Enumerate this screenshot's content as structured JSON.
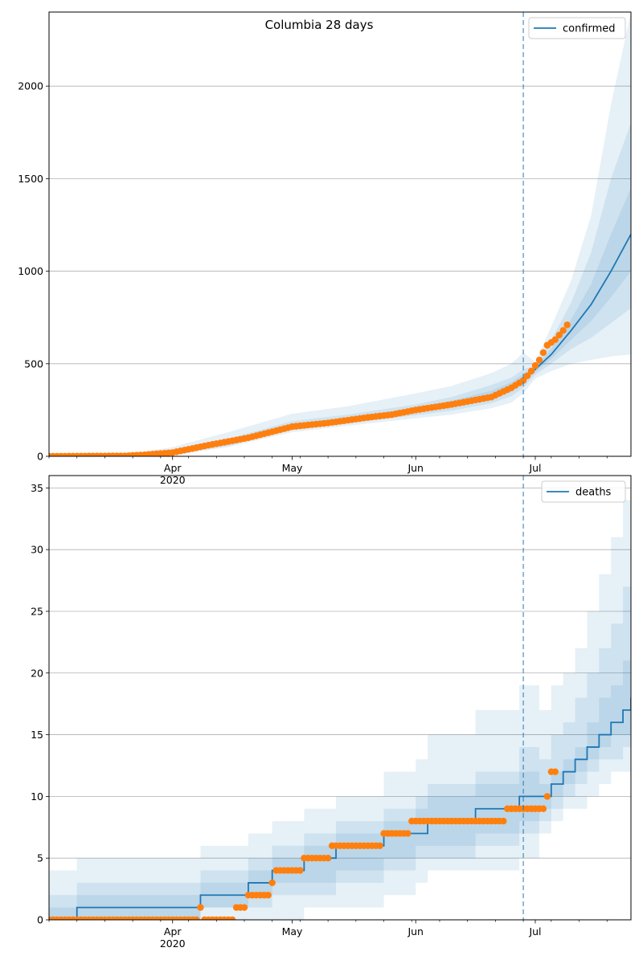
{
  "figure": {
    "title": "Columbia 28 days"
  },
  "colors": {
    "model": "#1f77b4",
    "observed": "#ff7f0e",
    "band": "#1f77b4",
    "grid": "#b0b0b0",
    "forecast_line": "#1f77b4"
  },
  "x_axis": {
    "start_date": "2020-03-01",
    "end_date": "2020-07-25",
    "major_ticks": [
      {
        "date": "2020-04-01",
        "label": "Apr",
        "sublabel": "2020"
      },
      {
        "date": "2020-05-01",
        "label": "May",
        "sublabel": ""
      },
      {
        "date": "2020-06-01",
        "label": "Jun",
        "sublabel": ""
      },
      {
        "date": "2020-07-01",
        "label": "Jul",
        "sublabel": ""
      }
    ],
    "forecast_start": "2020-06-28"
  },
  "chart_data": [
    {
      "type": "line",
      "legend": "confirmed",
      "legend_position": "upper right",
      "grid": "y",
      "ylim": [
        0,
        2400
      ],
      "yticks": [
        0,
        500,
        1000,
        1500,
        2000
      ],
      "model": {
        "x": [
          "2020-03-01",
          "2020-03-15",
          "2020-03-25",
          "2020-04-01",
          "2020-04-15",
          "2020-05-01",
          "2020-05-15",
          "2020-06-01",
          "2020-06-10",
          "2020-06-20",
          "2020-06-25",
          "2020-06-28",
          "2020-07-01",
          "2020-07-05",
          "2020-07-10",
          "2020-07-15",
          "2020-07-20",
          "2020-07-25"
        ],
        "y": [
          0,
          2,
          8,
          20,
          70,
          160,
          195,
          245,
          280,
          330,
          375,
          420,
          470,
          550,
          680,
          820,
          1000,
          1200
        ]
      },
      "bands": [
        {
          "low": [
            0,
            0,
            0,
            5,
            50,
            130,
            165,
            205,
            225,
            260,
            290,
            340,
            420,
            460,
            500,
            520,
            540,
            550
          ],
          "high": [
            0,
            8,
            25,
            50,
            130,
            230,
            270,
            340,
            380,
            450,
            500,
            560,
            510,
            700,
            950,
            1300,
            1900,
            2400
          ]
        },
        {
          "low": [
            0,
            0,
            2,
            10,
            57,
            142,
            177,
            222,
            247,
            287,
            325,
            370,
            440,
            500,
            580,
            640,
            720,
            800
          ],
          "high": [
            0,
            5,
            15,
            32,
            95,
            190,
            225,
            280,
            320,
            385,
            425,
            470,
            490,
            630,
            830,
            1100,
            1500,
            1800
          ]
        },
        {
          "low": [
            0,
            1,
            5,
            15,
            63,
            150,
            186,
            234,
            264,
            308,
            350,
            395,
            455,
            525,
            630,
            730,
            860,
            1000
          ],
          "high": [
            0,
            3,
            11,
            25,
            80,
            175,
            210,
            260,
            300,
            355,
            400,
            445,
            480,
            580,
            740,
            930,
            1200,
            1450
          ]
        }
      ],
      "observed": {
        "x": [
          "2020-03-01",
          "2020-03-20",
          "2020-03-25",
          "2020-04-01",
          "2020-04-10",
          "2020-04-20",
          "2020-05-01",
          "2020-05-10",
          "2020-05-20",
          "2020-05-26",
          "2020-06-01",
          "2020-06-10",
          "2020-06-20",
          "2020-06-25",
          "2020-06-28",
          "2020-06-30",
          "2020-07-02",
          "2020-07-04",
          "2020-07-06",
          "2020-07-08",
          "2020-07-09"
        ],
        "y": [
          0,
          2,
          8,
          20,
          60,
          100,
          160,
          180,
          210,
          225,
          250,
          280,
          320,
          370,
          410,
          460,
          520,
          600,
          630,
          680,
          710
        ]
      }
    },
    {
      "type": "line",
      "legend": "deaths",
      "legend_position": "upper right",
      "grid": "y",
      "ylim": [
        0,
        36
      ],
      "yticks": [
        0,
        5,
        10,
        15,
        20,
        25,
        30,
        35
      ],
      "model": {
        "x": [
          "2020-03-01",
          "2020-03-08",
          "2020-04-08",
          "2020-04-20",
          "2020-04-26",
          "2020-05-04",
          "2020-05-12",
          "2020-05-24",
          "2020-06-01",
          "2020-06-04",
          "2020-06-16",
          "2020-06-27",
          "2020-07-02",
          "2020-07-05",
          "2020-07-08",
          "2020-07-11",
          "2020-07-14",
          "2020-07-17",
          "2020-07-20",
          "2020-07-23",
          "2020-07-25"
        ],
        "y": [
          0,
          1,
          2,
          3,
          4,
          5,
          6,
          7,
          7,
          8,
          9,
          10,
          10,
          11,
          12,
          13,
          14,
          15,
          16,
          17,
          18
        ]
      },
      "bands": [
        {
          "low": [
            0,
            0,
            0,
            0,
            0,
            1,
            1,
            2,
            3,
            4,
            4,
            5,
            7,
            8,
            9,
            9,
            10,
            11,
            12,
            12,
            12
          ],
          "high": [
            4,
            5,
            6,
            7,
            8,
            9,
            10,
            12,
            13,
            15,
            17,
            19,
            17,
            19,
            20,
            22,
            25,
            28,
            31,
            34,
            36
          ]
        },
        {
          "low": [
            0,
            0,
            1,
            1,
            2,
            2,
            3,
            4,
            5,
            5,
            6,
            7,
            8,
            9,
            10,
            11,
            12,
            13,
            13,
            14,
            14
          ],
          "high": [
            2,
            3,
            4,
            5,
            6,
            7,
            8,
            9,
            10,
            11,
            12,
            14,
            13,
            15,
            16,
            18,
            20,
            22,
            24,
            27,
            30
          ]
        },
        {
          "low": [
            0,
            0,
            1,
            2,
            3,
            3,
            4,
            5,
            6,
            6,
            7,
            8,
            9,
            10,
            11,
            12,
            13,
            14,
            15,
            15,
            16
          ],
          "high": [
            1,
            2,
            3,
            4,
            5,
            6,
            7,
            8,
            9,
            10,
            11,
            12,
            11,
            12,
            13,
            14,
            16,
            18,
            19,
            21,
            22
          ]
        }
      ],
      "observed": {
        "x": [
          "2020-03-01",
          "2020-04-08",
          "2020-04-09",
          "2020-04-17",
          "2020-04-20",
          "2020-04-26",
          "2020-04-27",
          "2020-05-04",
          "2020-05-11",
          "2020-05-24",
          "2020-05-31",
          "2020-06-24",
          "2020-07-04",
          "2020-07-05",
          "2020-07-06"
        ],
        "y": [
          0,
          1,
          0,
          1,
          2,
          3,
          4,
          5,
          6,
          7,
          8,
          9,
          10,
          12,
          12
        ]
      }
    }
  ]
}
